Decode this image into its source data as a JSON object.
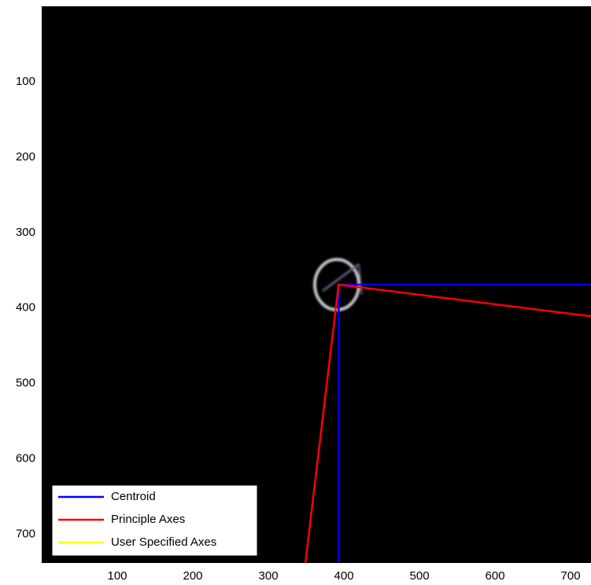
{
  "chart_data": {
    "type": "line",
    "xlim": [
      0,
      727
    ],
    "ylim": [
      0,
      738
    ],
    "y_reversed": true,
    "xticks": [
      100,
      200,
      300,
      400,
      500,
      600,
      700
    ],
    "yticks": [
      100,
      200,
      300,
      400,
      500,
      600,
      700
    ],
    "background": "#000000",
    "legend": "lower left",
    "series": [
      {
        "name": "Centroid",
        "color": "#0000ff",
        "x": [
          727,
          393,
          393
        ],
        "values": [
          369,
          369,
          738
        ]
      },
      {
        "name": "Principle Axes",
        "color": "#ff0000",
        "x": [
          727,
          393,
          349
        ],
        "values": [
          411,
          369,
          738
        ]
      },
      {
        "name": "User Specified Axes",
        "color": "#ffff00",
        "x": [],
        "values": []
      }
    ]
  }
}
